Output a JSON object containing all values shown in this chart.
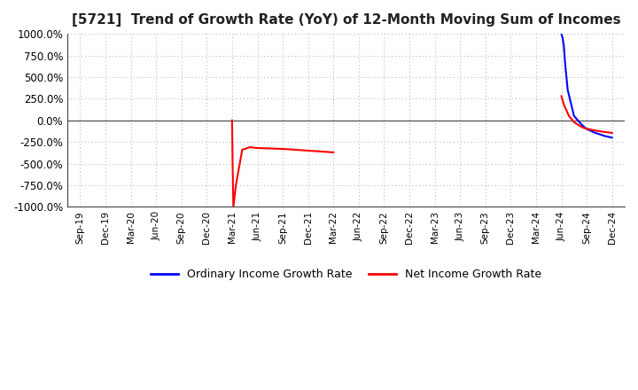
{
  "title": "[5721]  Trend of Growth Rate (YoY) of 12-Month Moving Sum of Incomes",
  "ylim": [
    -1000,
    1000
  ],
  "yticks": [
    -1000,
    -750,
    -500,
    -250,
    0,
    250,
    500,
    750,
    1000
  ],
  "ytick_labels": [
    "-1000.0%",
    "-750.0%",
    "-500.0%",
    "-250.0%",
    "0.0%",
    "250.0%",
    "500.0%",
    "750.0%",
    "1000.0%"
  ],
  "background_color": "#ffffff",
  "plot_bg_color": "#ffffff",
  "grid_color": "#aaaaaa",
  "ordinary_income_color": "#0000ff",
  "net_income_color": "#ff0000",
  "legend_ordinary": "Ordinary Income Growth Rate",
  "legend_net": "Net Income Growth Rate",
  "x_labels": [
    "Sep-19",
    "Dec-19",
    "Mar-20",
    "Jun-20",
    "Sep-20",
    "Dec-20",
    "Mar-21",
    "Jun-21",
    "Sep-21",
    "Dec-21",
    "Mar-22",
    "Jun-22",
    "Sep-22",
    "Dec-22",
    "Mar-23",
    "Jun-23",
    "Sep-23",
    "Dec-23",
    "Mar-24",
    "Jun-24",
    "Sep-24",
    "Dec-24"
  ],
  "blue_x": [
    19.0,
    19.05,
    19.1,
    19.15,
    19.25,
    19.5,
    19.8,
    20.0,
    20.3,
    20.7,
    21.0
  ],
  "blue_y": [
    1000,
    950,
    850,
    650,
    350,
    50,
    -50,
    -100,
    -140,
    -180,
    -200
  ],
  "red_seg1_x": [
    6.0,
    6.02,
    6.05,
    6.15,
    6.4,
    6.7,
    7.0,
    7.5,
    8.0,
    8.5,
    9.0,
    9.5,
    10.0
  ],
  "red_seg1_y": [
    0,
    -500,
    -1000,
    -750,
    -340,
    -310,
    -320,
    -325,
    -330,
    -340,
    -350,
    -360,
    -370
  ],
  "red_seg2_x": [
    19.0,
    19.1,
    19.3,
    19.5,
    19.7,
    19.9,
    20.2,
    20.6,
    21.0
  ],
  "red_seg2_y": [
    280,
    180,
    50,
    -20,
    -60,
    -90,
    -110,
    -130,
    -145
  ]
}
